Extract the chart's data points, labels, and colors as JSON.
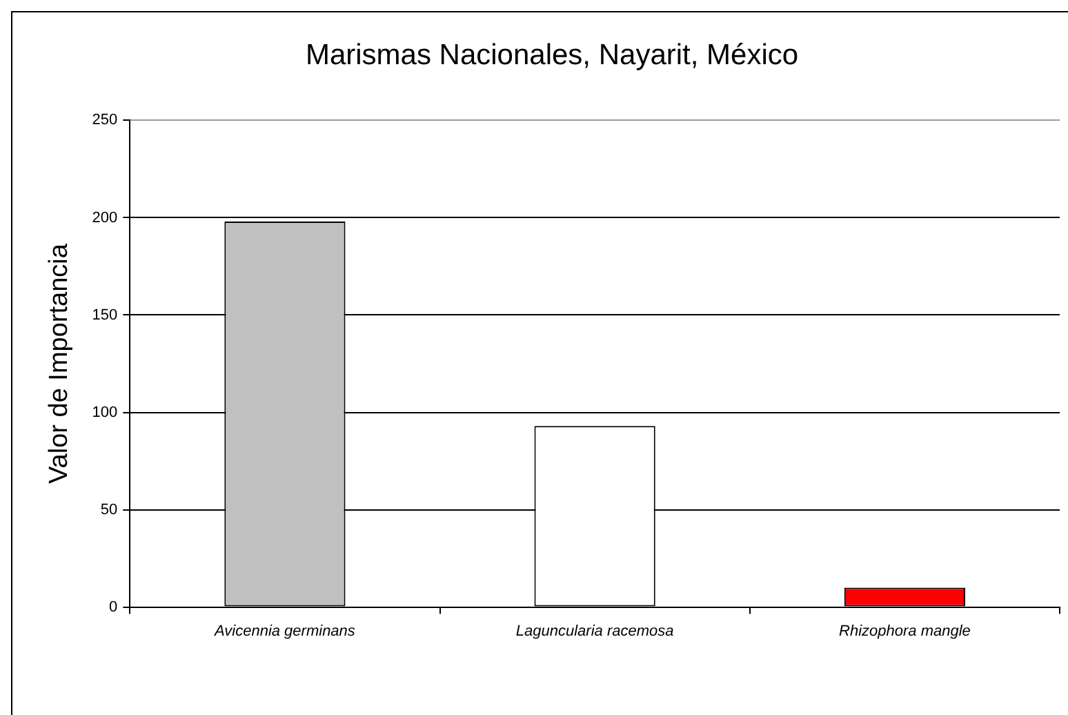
{
  "chart_data": {
    "type": "bar",
    "title": "Marismas Nacionales, Nayarit, México",
    "ylabel": "Valor de Importancia",
    "categories": [
      "Avicennia germinans",
      "Laguncularia racemosa",
      "Rhizophora mangle"
    ],
    "values": [
      198,
      93,
      10
    ],
    "colors": [
      "#c0c0c0",
      "#ffffff",
      "#ff0000"
    ],
    "ylim": [
      0,
      250
    ],
    "yticks": [
      0,
      50,
      100,
      150,
      200,
      250
    ],
    "grid": "y",
    "legend": false
  }
}
